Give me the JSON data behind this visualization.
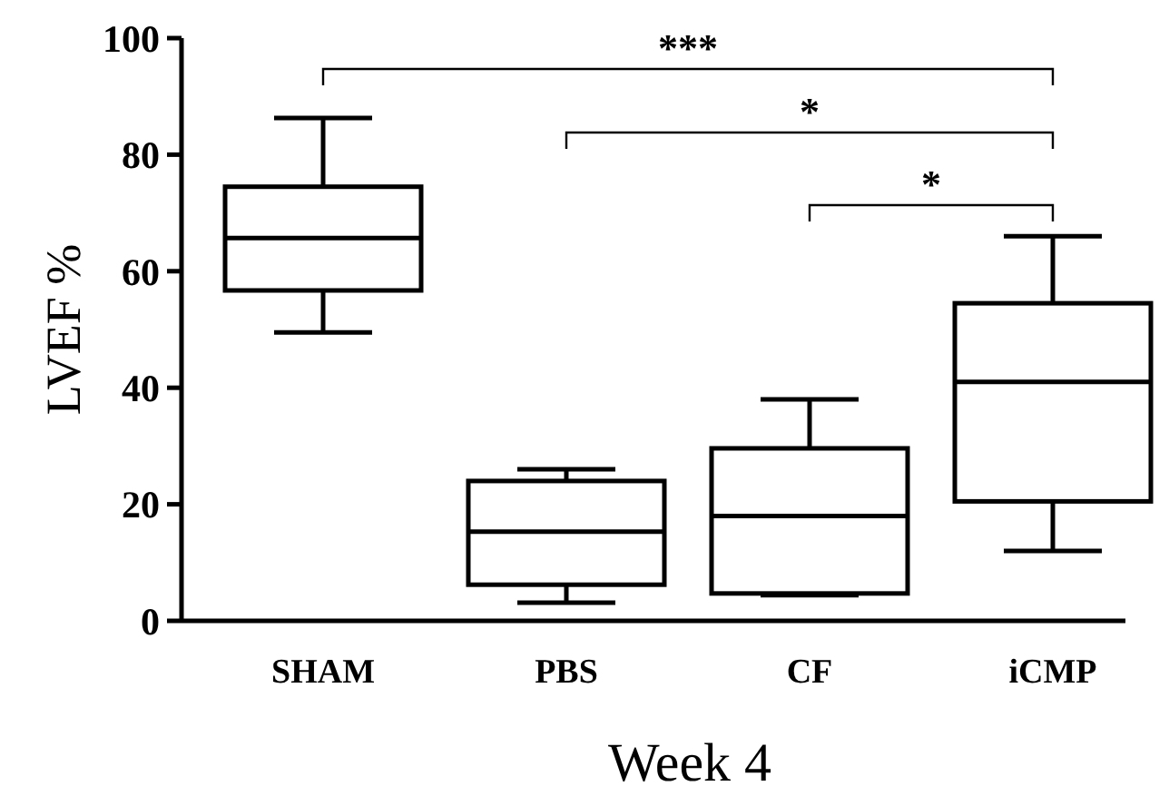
{
  "chart_data": {
    "type": "box",
    "xlabel": "Week 4",
    "ylabel": "LVEF %",
    "categories": [
      "SHAM",
      "PBS",
      "CF",
      "iCMP"
    ],
    "boxes": [
      {
        "low": 49.5,
        "q1": 56.7,
        "median": 65.7,
        "q3": 74.5,
        "high": 86.3
      },
      {
        "low": 3.1,
        "q1": 6.2,
        "median": 15.3,
        "q3": 24,
        "high": 26
      },
      {
        "low": 4.4,
        "q1": 4.7,
        "median": 18,
        "q3": 29.6,
        "high": 38
      },
      {
        "low": 12,
        "q1": 20.5,
        "median": 41,
        "q3": 54.5,
        "high": 66
      }
    ],
    "color": "#000000",
    "ylim": [
      0,
      100
    ],
    "yticks": [
      0,
      20,
      40,
      60,
      80,
      100
    ],
    "grid": false,
    "annotations": [
      "***",
      "*",
      "*"
    ]
  }
}
